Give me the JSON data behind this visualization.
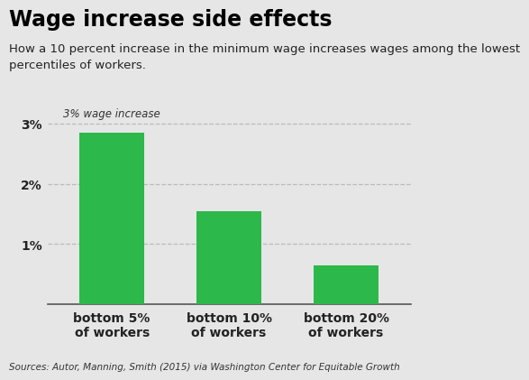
{
  "title": "Wage increase side effects",
  "subtitle": "How a 10 percent increase in the minimum wage increases wages among the lowest\npercentiles of workers.",
  "categories": [
    "bottom 5%\nof workers",
    "bottom 10%\nof workers",
    "bottom 20%\nof workers"
  ],
  "values": [
    2.85,
    1.55,
    0.65
  ],
  "bar_color": "#2db84b",
  "ylim": [
    0,
    3.3
  ],
  "yticks": [
    1,
    2,
    3
  ],
  "ytick_labels": [
    "1%",
    "2%",
    "3%"
  ],
  "annotation_3pct": "3% wage increase",
  "source_text": "Sources: Autor, Manning, Smith (2015) via Washington Center for Equitable Growth",
  "background_color": "#e6e6e6",
  "title_fontsize": 17,
  "subtitle_fontsize": 9.5,
  "source_fontsize": 7.5,
  "bar_width": 0.55,
  "grid_color": "#bbbbbb",
  "tick_label_fontsize": 10,
  "xtick_fontsize": 10
}
